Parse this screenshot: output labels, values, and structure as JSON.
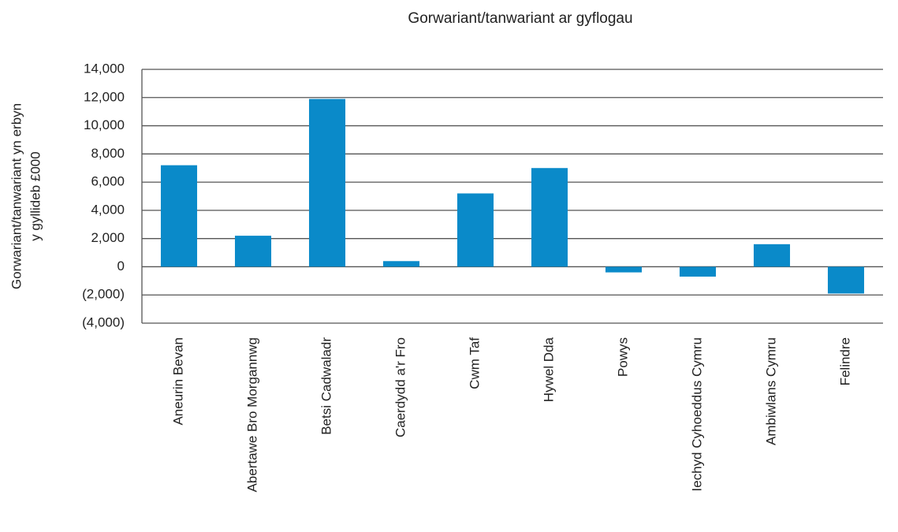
{
  "chart_data": {
    "type": "bar",
    "title": "Gorwariant/tanwariant ar gyflogau",
    "y_label": [
      "Gorwariant/tanwariant yn erbyn",
      "y gyllideb £000"
    ],
    "categories": [
      "Aneurin Bevan",
      "Abertawe Bro Morgannwg",
      "Betsi Cadwaladr",
      "Caerdydd a'r Fro",
      "Cwm Taf",
      "Hywel Dda",
      "Powys",
      "Iechyd Cyhoeddus Cymru",
      "Ambiwlans Cymru",
      "Felindre"
    ],
    "values": [
      7200,
      2200,
      11900,
      400,
      5200,
      7000,
      -400,
      -700,
      1600,
      -1900
    ],
    "color": "#0a8ac9",
    "ylim": [
      -4000,
      14000
    ],
    "yticks": [
      {
        "value": -4000,
        "label": "(4,000)"
      },
      {
        "value": -2000,
        "label": "(2,000)"
      },
      0,
      {
        "value": 2000,
        "label": "2,000"
      },
      {
        "value": 4000,
        "label": "4,000"
      },
      {
        "value": 6000,
        "label": "6,000"
      },
      {
        "value": 8000,
        "label": "8,000"
      },
      {
        "value": 10000,
        "label": "10,000"
      },
      {
        "value": 12000,
        "label": "12,000"
      },
      {
        "value": 14000,
        "label": "14,000"
      }
    ],
    "grid": true
  }
}
